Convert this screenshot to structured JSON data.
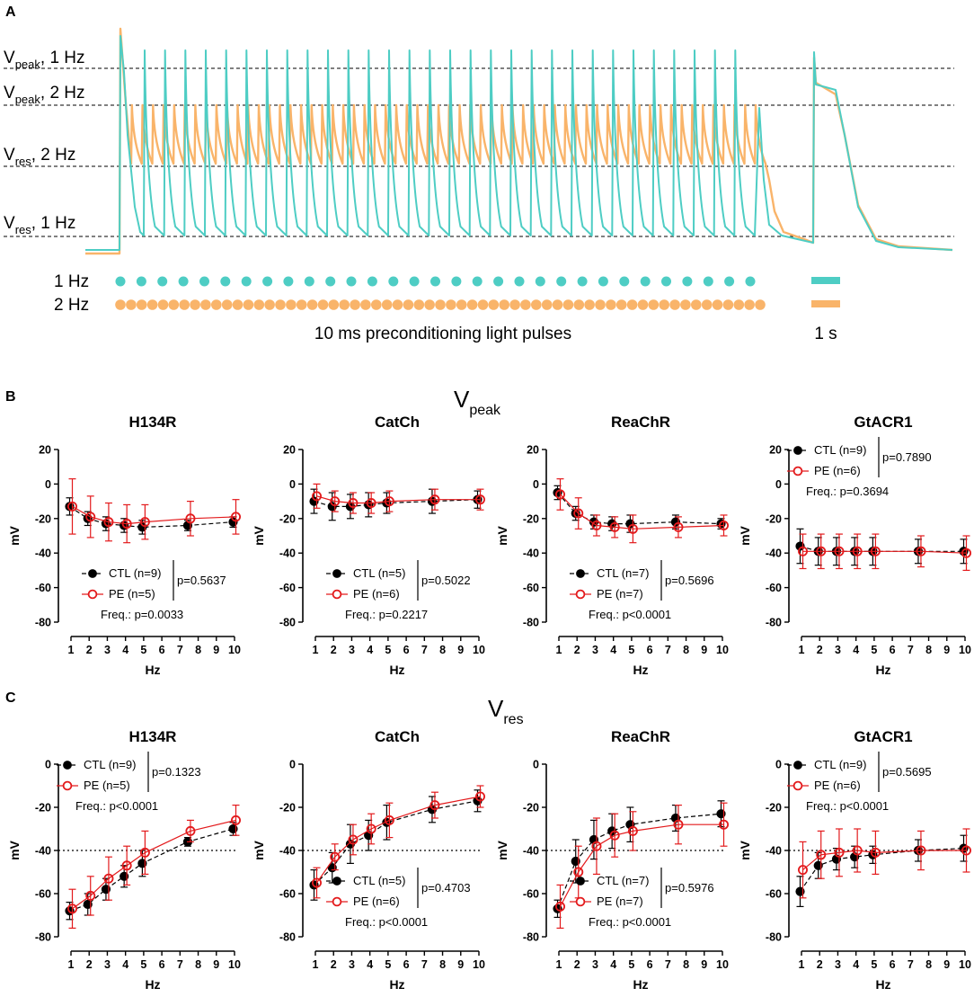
{
  "figure": {
    "panel_a": {
      "letter": "A",
      "annotations": [
        {
          "main": "V",
          "sub": "peak",
          "rest": ", 1 Hz"
        },
        {
          "main": "V",
          "sub": "peak",
          "rest": ", 2 Hz"
        },
        {
          "main": "V",
          "sub": "res",
          "rest": ", 2 Hz"
        },
        {
          "main": "V",
          "sub": "res",
          "rest": ", 1 Hz"
        }
      ],
      "rows": [
        {
          "label": "1 Hz",
          "color": "#4ecdc4",
          "pulses": 31
        },
        {
          "label": "2 Hz",
          "color": "#f9b46a",
          "pulses": 61
        }
      ],
      "pulse_caption": "10 ms preconditioning light pulses",
      "scale_caption": "1 s",
      "colors": {
        "cyan": "#4ecdc4",
        "orange": "#f9b46a"
      }
    },
    "panel_b": {
      "letter": "B",
      "title_main": "V",
      "title_sub": "peak"
    },
    "panel_c": {
      "letter": "C",
      "title_main": "V",
      "title_sub": "res"
    }
  },
  "chart_data": [
    {
      "panel": "B",
      "type": "scatter",
      "title": "H134R",
      "xlabel": "Hz",
      "ylabel": "mV",
      "xlim": [
        1,
        10
      ],
      "ylim": [
        -80,
        20
      ],
      "xticks": [
        "1",
        "2",
        "3",
        "4",
        "5",
        "6",
        "7",
        "8",
        "9",
        "10"
      ],
      "yticks": [
        "20",
        "0",
        "-20",
        "-40",
        "-60",
        "-80"
      ],
      "x": [
        1,
        2,
        3,
        4,
        5,
        7.5,
        10
      ],
      "series": [
        {
          "name": "CTL (n=9)",
          "color": "#000000",
          "values": [
            -13,
            -20,
            -23,
            -24,
            -25,
            -24,
            -22
          ],
          "errors": [
            5,
            4,
            4,
            4,
            4,
            3,
            3
          ]
        },
        {
          "name": "PE (n=5)",
          "color": "#e31a1c",
          "values": [
            -13,
            -19,
            -22,
            -23,
            -22,
            -20,
            -19
          ],
          "errors": [
            16,
            12,
            11,
            11,
            10,
            10,
            10
          ]
        }
      ],
      "legend": {
        "pos": "bottom-left"
      },
      "stats": {
        "p": "p=0.5637",
        "freq": "Freq.: p=0.0033"
      }
    },
    {
      "panel": "B",
      "type": "scatter",
      "title": "CatCh",
      "xlabel": "Hz",
      "ylabel": "mV",
      "xlim": [
        1,
        10
      ],
      "ylim": [
        -80,
        20
      ],
      "xticks": [
        "1",
        "2",
        "3",
        "4",
        "5",
        "6",
        "7",
        "8",
        "9",
        "10"
      ],
      "yticks": [
        "20",
        "0",
        "-20",
        "-40",
        "-60",
        "-80"
      ],
      "x": [
        1,
        2,
        3,
        4,
        5,
        7.5,
        10
      ],
      "series": [
        {
          "name": "CTL (n=5)",
          "color": "#000000",
          "values": [
            -10,
            -13,
            -13,
            -12,
            -11,
            -10,
            -9
          ],
          "errors": [
            7,
            8,
            7,
            7,
            6,
            7,
            5
          ]
        },
        {
          "name": "PE (n=6)",
          "color": "#e31a1c",
          "values": [
            -7,
            -10,
            -11,
            -11,
            -10,
            -9,
            -9
          ],
          "errors": [
            7,
            6,
            6,
            6,
            6,
            6,
            6
          ]
        }
      ],
      "legend": {
        "pos": "bottom-left"
      },
      "stats": {
        "p": "p=0.5022",
        "freq": "Freq.: p=0.2217"
      }
    },
    {
      "panel": "B",
      "type": "scatter",
      "title": "ReaChR",
      "xlabel": "Hz",
      "ylabel": "mV",
      "xlim": [
        1,
        10
      ],
      "ylim": [
        -80,
        20
      ],
      "xticks": [
        "1",
        "2",
        "3",
        "4",
        "5",
        "6",
        "7",
        "8",
        "9",
        "10"
      ],
      "yticks": [
        "20",
        "0",
        "-20",
        "-40",
        "-60",
        "-80"
      ],
      "x": [
        1,
        2,
        3,
        4,
        5,
        7.5,
        10
      ],
      "series": [
        {
          "name": "CTL (n=7)",
          "color": "#000000",
          "values": [
            -5,
            -17,
            -22,
            -23,
            -23,
            -22,
            -23
          ],
          "errors": [
            4,
            4,
            4,
            4,
            5,
            4,
            3
          ]
        },
        {
          "name": "PE (n=7)",
          "color": "#e31a1c",
          "values": [
            -6,
            -17,
            -24,
            -25,
            -26,
            -25,
            -24
          ],
          "errors": [
            9,
            9,
            6,
            6,
            8,
            6,
            6
          ]
        }
      ],
      "legend": {
        "pos": "bottom-left"
      },
      "stats": {
        "p": "p=0.5696",
        "freq": "Freq.: p<0.0001"
      }
    },
    {
      "panel": "B",
      "type": "scatter",
      "title": "GtACR1",
      "xlabel": "Hz",
      "ylabel": "mV",
      "xlim": [
        1,
        10
      ],
      "ylim": [
        -80,
        20
      ],
      "xticks": [
        "1",
        "2",
        "3",
        "4",
        "5",
        "6",
        "7",
        "8",
        "9",
        "10"
      ],
      "yticks": [
        "20",
        "0",
        "-20",
        "-40",
        "-60",
        "-80"
      ],
      "x": [
        1,
        2,
        3,
        4,
        5,
        7.5,
        10
      ],
      "series": [
        {
          "name": "CTL (n=9)",
          "color": "#000000",
          "values": [
            -36,
            -39,
            -39,
            -39,
            -39,
            -39,
            -39
          ],
          "errors": [
            10,
            8,
            8,
            8,
            8,
            7,
            7
          ]
        },
        {
          "name": "PE (n=6)",
          "color": "#e31a1c",
          "values": [
            -39,
            -39,
            -39,
            -39,
            -39,
            -39,
            -40
          ],
          "errors": [
            10,
            10,
            10,
            10,
            10,
            9,
            10
          ]
        }
      ],
      "legend": {
        "pos": "top-left"
      },
      "stats": {
        "p": "p=0.7890",
        "freq": "Freq.: p=0.3694"
      }
    },
    {
      "panel": "C",
      "type": "scatter",
      "title": "H134R",
      "xlabel": "Hz",
      "ylabel": "mV",
      "xlim": [
        1,
        10
      ],
      "ylim": [
        -80,
        0
      ],
      "xticks": [
        "1",
        "2",
        "3",
        "4",
        "5",
        "6",
        "7",
        "8",
        "9",
        "10"
      ],
      "yticks": [
        "0",
        "-20",
        "-40",
        "-60",
        "-80"
      ],
      "ref_line": -40,
      "x": [
        1,
        2,
        3,
        4,
        5,
        7.5,
        10
      ],
      "series": [
        {
          "name": "CTL (n=9)",
          "color": "#000000",
          "values": [
            -68,
            -65,
            -58,
            -52,
            -46,
            -36,
            -30
          ],
          "errors": [
            4,
            5,
            5,
            5,
            6,
            2,
            3
          ]
        },
        {
          "name": "PE (n=5)",
          "color": "#e31a1c",
          "values": [
            -67,
            -61,
            -53,
            -47,
            -41,
            -31,
            -26
          ],
          "errors": [
            9,
            9,
            10,
            9,
            10,
            5,
            7
          ]
        }
      ],
      "legend": {
        "pos": "top-left"
      },
      "stats": {
        "p": "p=0.1323",
        "freq": "Freq.: p<0.0001"
      }
    },
    {
      "panel": "C",
      "type": "scatter",
      "title": "CatCh",
      "xlabel": "Hz",
      "ylabel": "mV",
      "xlim": [
        1,
        10
      ],
      "ylim": [
        -80,
        0
      ],
      "xticks": [
        "1",
        "2",
        "3",
        "4",
        "5",
        "6",
        "7",
        "8",
        "9",
        "10"
      ],
      "yticks": [
        "0",
        "-20",
        "-40",
        "-60",
        "-80"
      ],
      "ref_line": -40,
      "x": [
        1,
        2,
        3,
        4,
        5,
        7.5,
        10
      ],
      "series": [
        {
          "name": "CTL (n=5)",
          "color": "#000000",
          "values": [
            -56,
            -48,
            -37,
            -33,
            -27,
            -21,
            -17
          ],
          "errors": [
            7,
            7,
            9,
            7,
            8,
            6,
            5
          ]
        },
        {
          "name": "PE (n=6)",
          "color": "#e31a1c",
          "values": [
            -55,
            -43,
            -35,
            -30,
            -26,
            -19,
            -15
          ],
          "errors": [
            7,
            6,
            7,
            7,
            8,
            6,
            5
          ]
        }
      ],
      "legend": {
        "pos": "bottom-right"
      },
      "stats": {
        "p": "p=0.4703",
        "freq": "Freq.: p<0.0001"
      }
    },
    {
      "panel": "C",
      "type": "scatter",
      "title": "ReaChR",
      "xlabel": "Hz",
      "ylabel": "mV",
      "xlim": [
        1,
        10
      ],
      "ylim": [
        -80,
        0
      ],
      "xticks": [
        "1",
        "2",
        "3",
        "4",
        "5",
        "6",
        "7",
        "8",
        "9",
        "10"
      ],
      "yticks": [
        "0",
        "-20",
        "-40",
        "-60",
        "-80"
      ],
      "ref_line": -40,
      "x": [
        1,
        2,
        3,
        4,
        5,
        7.5,
        10
      ],
      "series": [
        {
          "name": "CTL (n=7)",
          "color": "#000000",
          "values": [
            -67,
            -45,
            -35,
            -31,
            -28,
            -25,
            -23
          ],
          "errors": [
            4,
            10,
            9,
            8,
            8,
            6,
            6
          ]
        },
        {
          "name": "PE (n=7)",
          "color": "#e31a1c",
          "values": [
            -66,
            -50,
            -38,
            -33,
            -31,
            -28,
            -28
          ],
          "errors": [
            10,
            12,
            13,
            10,
            9,
            9,
            10
          ]
        }
      ],
      "legend": {
        "pos": "bottom-right"
      },
      "stats": {
        "p": "p=0.5976",
        "freq": "Freq.: p<0.0001"
      }
    },
    {
      "panel": "C",
      "type": "scatter",
      "title": "GtACR1",
      "xlabel": "Hz",
      "ylabel": "mV",
      "xlim": [
        1,
        10
      ],
      "ylim": [
        -80,
        0
      ],
      "xticks": [
        "1",
        "2",
        "3",
        "4",
        "5",
        "6",
        "7",
        "8",
        "9",
        "10"
      ],
      "yticks": [
        "0",
        "-20",
        "-40",
        "-60",
        "-80"
      ],
      "ref_line": -40,
      "x": [
        1,
        2,
        3,
        4,
        5,
        7.5,
        10
      ],
      "series": [
        {
          "name": "CTL (n=9)",
          "color": "#000000",
          "values": [
            -59,
            -47,
            -44,
            -43,
            -42,
            -40,
            -39
          ],
          "errors": [
            7,
            6,
            5,
            5,
            4,
            5,
            6
          ]
        },
        {
          "name": "PE (n=6)",
          "color": "#e31a1c",
          "values": [
            -49,
            -42,
            -41,
            -40,
            -41,
            -40,
            -40
          ],
          "errors": [
            13,
            11,
            11,
            10,
            10,
            9,
            10
          ]
        }
      ],
      "legend": {
        "pos": "top-left"
      },
      "stats": {
        "p": "p=0.5695",
        "freq": "Freq.: p<0.0001"
      }
    }
  ]
}
